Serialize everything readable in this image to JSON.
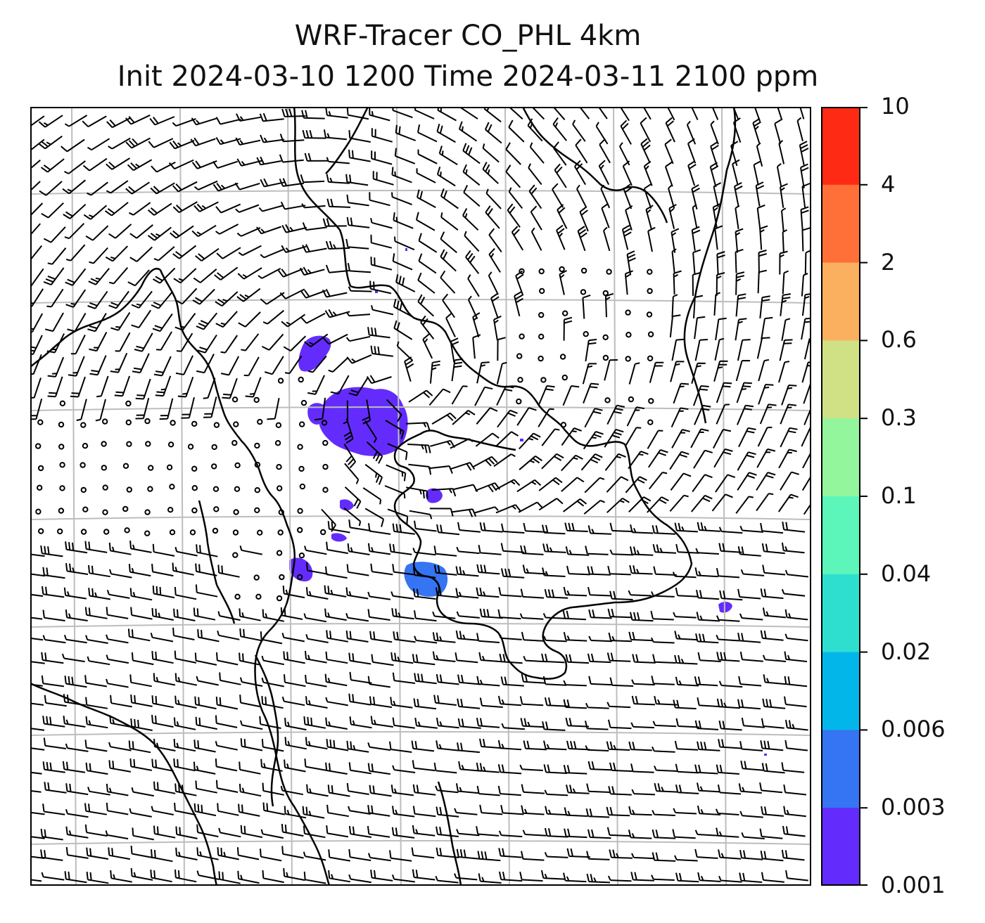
{
  "title": {
    "line1": "WRF-Tracer CO_PHL 4km",
    "line2": "Init 2024-03-10 1200 Time 2024-03-11 2100 ppm"
  },
  "colorbar": {
    "levels": [
      "10",
      "4",
      "2",
      "0.6",
      "0.3",
      "0.1",
      "0.04",
      "0.02",
      "0.006",
      "0.003",
      "0.001"
    ],
    "colors": [
      "#ff2a14",
      "#ff7038",
      "#fbb060",
      "#d0e084",
      "#93f59c",
      "#5cf6bb",
      "#2edfd0",
      "#03b6e9",
      "#3574f2",
      "#632cfc"
    ]
  },
  "map": {
    "plume_colors": {
      "lowest": "#632cfc",
      "second": "#3574f2"
    },
    "grid_color": "#bdbdbd",
    "barb_color": "#000000"
  }
}
